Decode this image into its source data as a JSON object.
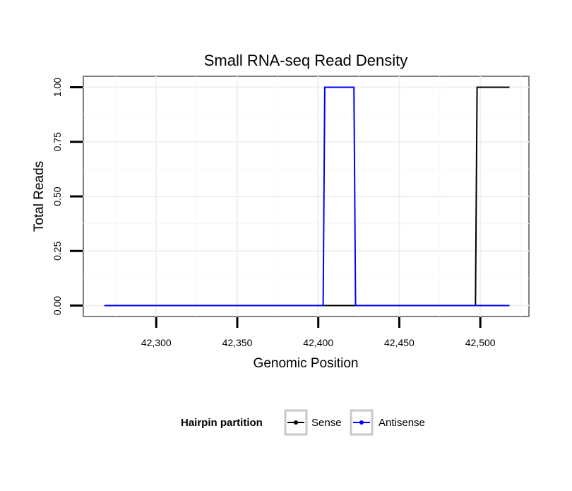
{
  "chart_data": {
    "type": "line",
    "title": "Small RNA-seq Read Density",
    "xlabel": "Genomic Position",
    "ylabel": "Total Reads",
    "xlim": [
      42255,
      42530
    ],
    "ylim": [
      -0.05,
      1.05
    ],
    "x_ticks": [
      42300,
      42350,
      42400,
      42450,
      42500
    ],
    "x_tick_labels": [
      "42,300",
      "42,350",
      "42,400",
      "42,450",
      "42,500"
    ],
    "y_ticks": [
      0.0,
      0.25,
      0.5,
      0.75,
      1.0
    ],
    "y_tick_labels": [
      "0.00",
      "0.25",
      "0.50",
      "0.75",
      "1.00"
    ],
    "grid": true,
    "legend_position": "bottom",
    "legend_title": "Hairpin partition",
    "series": [
      {
        "name": "Sense",
        "color": "#000000",
        "points": [
          [
            42268,
            0
          ],
          [
            42497,
            0
          ],
          [
            42498,
            1
          ],
          [
            42518,
            1
          ]
        ]
      },
      {
        "name": "Antisense",
        "color": "#0000ff",
        "points": [
          [
            42268,
            0
          ],
          [
            42403,
            0
          ],
          [
            42404,
            1
          ],
          [
            42422,
            1
          ],
          [
            42423,
            0
          ],
          [
            42518,
            0
          ]
        ]
      }
    ]
  }
}
